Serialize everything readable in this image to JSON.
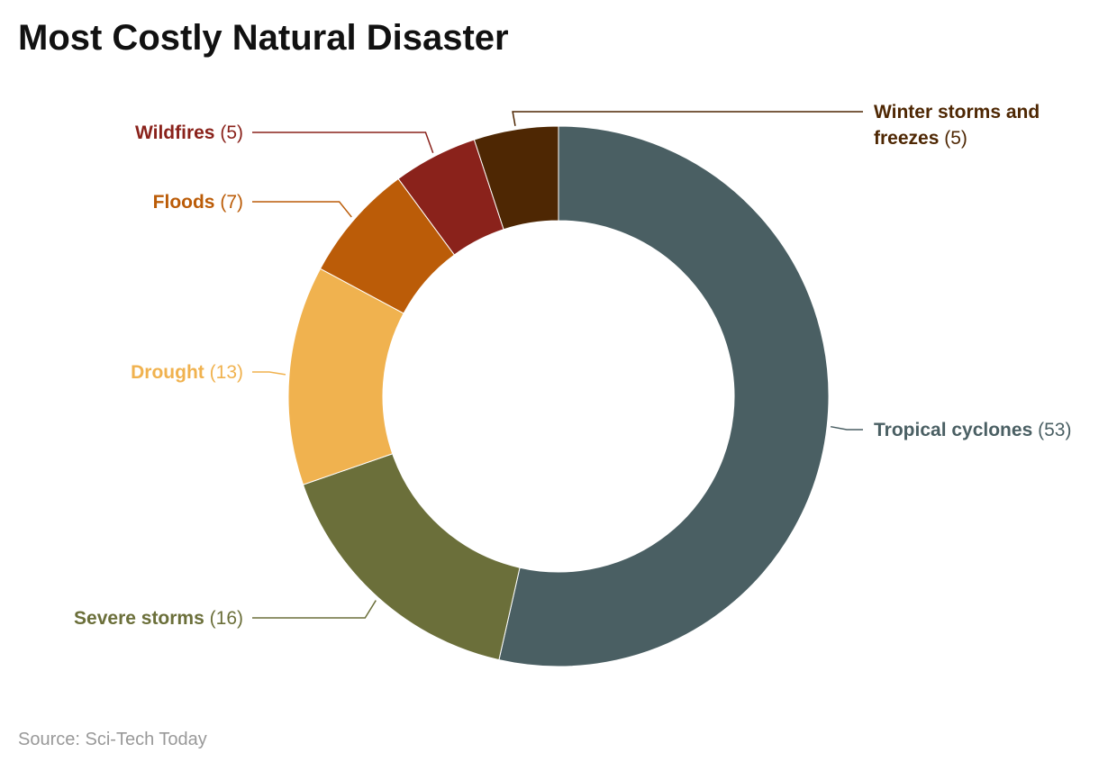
{
  "chart_data": {
    "type": "donut",
    "title": "Most Costly Natural Disaster",
    "categories": [
      "Tropical cyclones",
      "Severe storms",
      "Drought",
      "Floods",
      "Wildfires",
      "Winter storms and freezes"
    ],
    "values": [
      53,
      16,
      13,
      7,
      5,
      5
    ],
    "value_labels": [
      "(53)",
      "(16)",
      "(13)",
      "(7)",
      "(5)",
      "(5)"
    ],
    "colors": [
      "#4a5f63",
      "#6b6f3a",
      "#f0b24f",
      "#bb5c08",
      "#8a221b",
      "#4e2703"
    ],
    "source_label": "Source:",
    "source": "Sci-Tech Today"
  }
}
